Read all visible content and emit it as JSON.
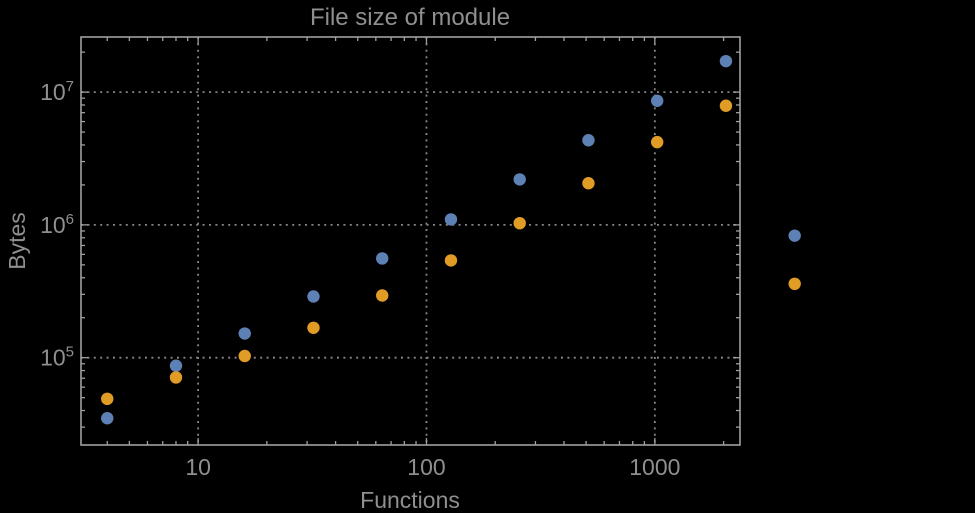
{
  "title": "File size of module",
  "x_axis_label": "Functions",
  "y_axis_label": "Bytes",
  "colors": {
    "background": "#000000",
    "frame": "#a0a0a0",
    "grid": "#868686",
    "text": "#8f8f8f",
    "series_blue": "#5e81b5",
    "series_orange": "#e09c24"
  },
  "chart_data": {
    "type": "scatter",
    "title": "File size of module",
    "xlabel": "Functions",
    "ylabel": "Bytes",
    "x_scale": "log",
    "y_scale": "log",
    "grid": "dotted lines at decade positions, both axes",
    "legend": "none",
    "x_range": [
      3.07,
      2360
    ],
    "y_range": [
      22000,
      26000000
    ],
    "x_tick_labels": [
      "10",
      "100",
      "1000"
    ],
    "y_tick_base": "10",
    "y_tick_exponents": [
      "5",
      "6",
      "7"
    ],
    "note_points_outside_frame": "x=4096 pair is drawn past the right frame edge (plot clipping off)",
    "x": [
      4,
      8,
      16,
      32,
      64,
      128,
      256,
      512,
      1024,
      2048,
      4096
    ],
    "series": [
      {
        "name": "blue-series",
        "color": "#5e81b5",
        "values": [
          35000,
          87000,
          152000,
          289000,
          559000,
          1100000,
          2200000,
          4340000,
          8600000,
          17100000,
          830000
        ]
      },
      {
        "name": "orange-series",
        "color": "#e09c24",
        "values": [
          49000,
          71000,
          103000,
          168000,
          294000,
          540000,
          1030000,
          2060000,
          4200000,
          7900000,
          360000
        ]
      }
    ]
  }
}
